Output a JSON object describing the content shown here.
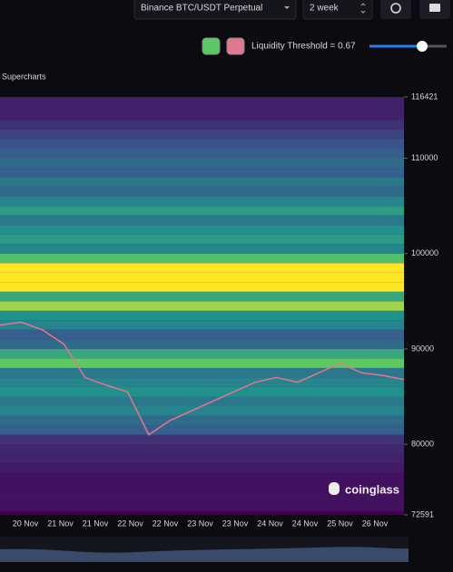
{
  "toolbar": {
    "symbol": "Binance BTC/USDT Perpetual",
    "period": "2 week",
    "threshold_label": "Liquidity Threshold = 0.67"
  },
  "chart_data": {
    "type": "heatmap",
    "source_label": "Supercharts",
    "watermark": "coinglass",
    "categories": [
      "20 Nov",
      "21 Nov",
      "21 Nov",
      "22 Nov",
      "22 Nov",
      "23 Nov",
      "23 Nov",
      "24 Nov",
      "24 Nov",
      "25 Nov",
      "26 Nov"
    ],
    "ylim": [
      72591,
      116421
    ],
    "yticks": [
      116421,
      110000,
      100000,
      90000,
      80000,
      72591
    ],
    "heatmap": {
      "levels": [
        73000,
        74000,
        75000,
        76000,
        77000,
        78000,
        79000,
        80000,
        81000,
        82000,
        83000,
        84000,
        85000,
        86000,
        87000,
        88000,
        89000,
        90000,
        91000,
        92000,
        93000,
        94000,
        95000,
        96000,
        97000,
        98000,
        99000,
        100000,
        101000,
        102000,
        103000,
        104000,
        105000,
        106000,
        107000,
        108000,
        109000,
        110000,
        111000,
        112000,
        113000,
        114000,
        115000,
        116000
      ],
      "intensity": [
        0.05,
        0.05,
        0.05,
        0.05,
        0.08,
        0.1,
        0.12,
        0.15,
        0.3,
        0.35,
        0.45,
        0.4,
        0.5,
        0.45,
        0.4,
        0.75,
        0.6,
        0.35,
        0.3,
        0.45,
        0.5,
        0.85,
        0.6,
        1,
        1,
        1,
        0.7,
        0.45,
        0.55,
        0.5,
        0.4,
        0.55,
        0.45,
        0.35,
        0.4,
        0.3,
        0.35,
        0.3,
        0.25,
        0.2,
        0.15,
        0.1,
        0.1,
        0.1
      ]
    },
    "price": {
      "color": "#e8748f",
      "values": [
        92500,
        92800,
        92000,
        90500,
        87000,
        86200,
        85500,
        81000,
        82500,
        83500,
        84500,
        85500,
        86500,
        87000,
        86500,
        87500,
        88500,
        87500,
        87200,
        86800
      ]
    }
  }
}
